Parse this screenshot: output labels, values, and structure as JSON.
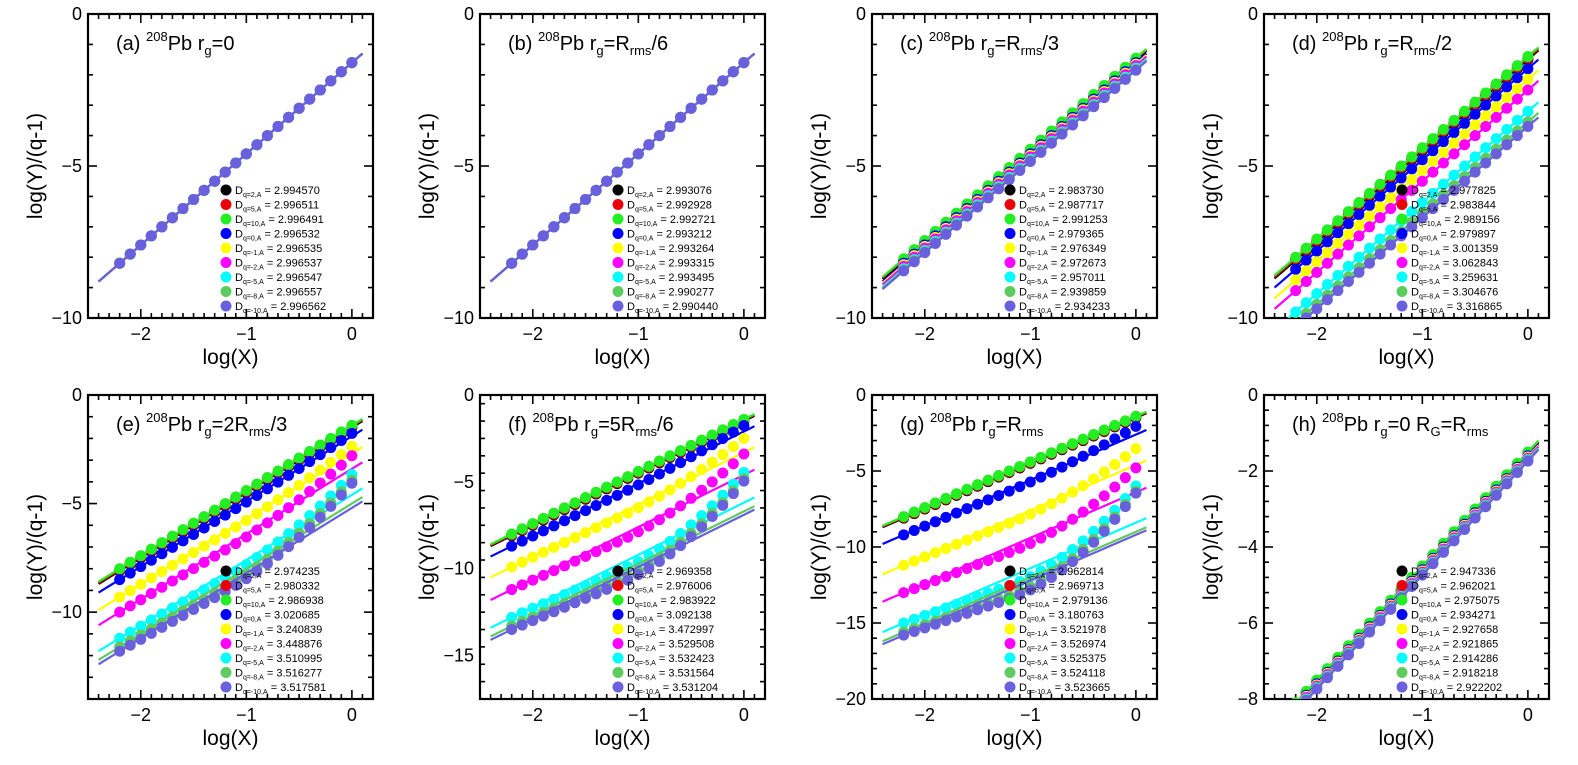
{
  "figure": {
    "xlabel": "log(X)",
    "ylabel": "log(Y)/(q-1)",
    "series_colors": {
      "q=2": "#000000",
      "q=5": "#e8000b",
      "q=10": "#22ee22",
      "q=0": "#0000ff",
      "q=-1": "#ffff00",
      "q=-2": "#ff00ff",
      "q=-5": "#00ffff",
      "q=-8": "#5ecb5e",
      "q=-10": "#6a5fdc"
    }
  },
  "chart_data": [
    {
      "type": "scatter+line",
      "title": {
        "label": "(a)",
        "mass": "208",
        "element": "Pb",
        "condition": "r",
        "condition_sub": "g",
        "condition_rest": "=0",
        "extra": "",
        "extra_sub": "",
        "extra_rest": ""
      },
      "xlabel": "log(X)",
      "ylabel": "log(Y)/(q-1)",
      "xlim": [
        -2.5,
        0.2
      ],
      "ylim": [
        -10,
        0
      ],
      "xticks": [
        "−2",
        "−1",
        "0"
      ],
      "xtick_values": [
        -2,
        -1,
        0
      ],
      "yticks": [
        "−10",
        "−5",
        "0"
      ],
      "ytick_values": [
        -10,
        -5,
        0
      ],
      "legend_position": "bottom-right",
      "series": [
        {
          "q": "2",
          "sub": "q=2,A",
          "dim": "2.994570",
          "color": "#000000",
          "offset": 0,
          "curve": 0
        },
        {
          "q": "5",
          "sub": "q=5,A",
          "dim": "2.996511",
          "color": "#e8000b",
          "offset": 0,
          "curve": 0
        },
        {
          "q": "10",
          "sub": "q=10,A",
          "dim": "2.996491",
          "color": "#22ee22",
          "offset": 0,
          "curve": 0
        },
        {
          "q": "0",
          "sub": "q=0,A",
          "dim": "2.996532",
          "color": "#0000ff",
          "offset": 0,
          "curve": 0
        },
        {
          "q": "-1",
          "sub": "q=-1,A",
          "dim": "2.996535",
          "color": "#ffff00",
          "offset": 0,
          "curve": 0
        },
        {
          "q": "-2",
          "sub": "q=-2,A",
          "dim": "2.996537",
          "color": "#ff00ff",
          "offset": 0,
          "curve": 0
        },
        {
          "q": "-5",
          "sub": "q=-5,A",
          "dim": "2.996547",
          "color": "#00ffff",
          "offset": 0,
          "curve": 0
        },
        {
          "q": "-8",
          "sub": "q=-8,A",
          "dim": "2.996557",
          "color": "#5ecb5e",
          "offset": 0,
          "curve": 0
        },
        {
          "q": "-10",
          "sub": "q=-10,A",
          "dim": "2.996562",
          "color": "#6a5fdc",
          "offset": 0,
          "curve": 0
        }
      ]
    },
    {
      "type": "scatter+line",
      "title": {
        "label": "(b)",
        "mass": "208",
        "element": "Pb",
        "condition": "r",
        "condition_sub": "g",
        "condition_rest": "=R",
        "extra": "",
        "extra_sub": "rms",
        "extra_rest": "/6"
      },
      "xlabel": "log(X)",
      "ylabel": "log(Y)/(q-1)",
      "xlim": [
        -2.5,
        0.2
      ],
      "ylim": [
        -10,
        0
      ],
      "xticks": [
        "−2",
        "−1",
        "0"
      ],
      "xtick_values": [
        -2,
        -1,
        0
      ],
      "yticks": [
        "−10",
        "−5",
        "0"
      ],
      "ytick_values": [
        -10,
        -5,
        0
      ],
      "legend_position": "bottom-right",
      "series": [
        {
          "q": "2",
          "sub": "q=2,A",
          "dim": "2.993076",
          "color": "#000000",
          "offset": 0,
          "curve": 0
        },
        {
          "q": "5",
          "sub": "q=5,A",
          "dim": "2.992928",
          "color": "#e8000b",
          "offset": 0,
          "curve": 0
        },
        {
          "q": "10",
          "sub": "q=10,A",
          "dim": "2.992721",
          "color": "#22ee22",
          "offset": 0,
          "curve": 0
        },
        {
          "q": "0",
          "sub": "q=0,A",
          "dim": "2.993212",
          "color": "#0000ff",
          "offset": 0,
          "curve": 0
        },
        {
          "q": "-1",
          "sub": "q=-1,A",
          "dim": "2.993264",
          "color": "#ffff00",
          "offset": 0,
          "curve": 0
        },
        {
          "q": "-2",
          "sub": "q=-2,A",
          "dim": "2.993315",
          "color": "#ff00ff",
          "offset": 0,
          "curve": 0
        },
        {
          "q": "-5",
          "sub": "q=-5,A",
          "dim": "2.993495",
          "color": "#00ffff",
          "offset": 0,
          "curve": 0
        },
        {
          "q": "-8",
          "sub": "q=-8,A",
          "dim": "2.990277",
          "color": "#5ecb5e",
          "offset": 0,
          "curve": 0
        },
        {
          "q": "-10",
          "sub": "q=-10,A",
          "dim": "2.990440",
          "color": "#6a5fdc",
          "offset": 0,
          "curve": 0
        }
      ]
    },
    {
      "type": "scatter+line",
      "title": {
        "label": "(c)",
        "mass": "208",
        "element": "Pb",
        "condition": "r",
        "condition_sub": "g",
        "condition_rest": "=R",
        "extra": "",
        "extra_sub": "rms",
        "extra_rest": "/3"
      },
      "xlabel": "log(X)",
      "ylabel": "log(Y)/(q-1)",
      "xlim": [
        -2.5,
        0.2
      ],
      "ylim": [
        -10,
        0
      ],
      "xticks": [
        "−2",
        "−1",
        "0"
      ],
      "xtick_values": [
        -2,
        -1,
        0
      ],
      "yticks": [
        "−10",
        "−5",
        "0"
      ],
      "ytick_values": [
        -10,
        -5,
        0
      ],
      "legend_position": "bottom-right",
      "series": [
        {
          "q": "2",
          "sub": "q=2,A",
          "dim": "2.983730",
          "color": "#000000",
          "offset": 0.08,
          "curve": 0
        },
        {
          "q": "5",
          "sub": "q=5,A",
          "dim": "2.987717",
          "color": "#e8000b",
          "offset": 0.12,
          "curve": 0
        },
        {
          "q": "10",
          "sub": "q=10,A",
          "dim": "2.991253",
          "color": "#22ee22",
          "offset": 0.15,
          "curve": 0
        },
        {
          "q": "0",
          "sub": "q=0,A",
          "dim": "2.979365",
          "color": "#0000ff",
          "offset": 0.0,
          "curve": 0
        },
        {
          "q": "-1",
          "sub": "q=-1,A",
          "dim": "2.976349",
          "color": "#ffff00",
          "offset": -0.05,
          "curve": 0
        },
        {
          "q": "-2",
          "sub": "q=-2,A",
          "dim": "2.972673",
          "color": "#ff00ff",
          "offset": -0.1,
          "curve": 0
        },
        {
          "q": "-5",
          "sub": "q=-5,A",
          "dim": "2.957011",
          "color": "#00ffff",
          "offset": -0.18,
          "curve": 0
        },
        {
          "q": "-8",
          "sub": "q=-8,A",
          "dim": "2.939859",
          "color": "#5ecb5e",
          "offset": -0.22,
          "curve": 0
        },
        {
          "q": "-10",
          "sub": "q=-10,A",
          "dim": "2.934233",
          "color": "#6a5fdc",
          "offset": -0.25,
          "curve": 0
        }
      ]
    },
    {
      "type": "scatter+line",
      "title": {
        "label": "(d)",
        "mass": "208",
        "element": "Pb",
        "condition": "r",
        "condition_sub": "g",
        "condition_rest": "=R",
        "extra": "",
        "extra_sub": "rms",
        "extra_rest": "/2"
      },
      "xlabel": "log(X)",
      "ylabel": "log(Y)/(q-1)",
      "xlim": [
        -2.5,
        0.2
      ],
      "ylim": [
        -10,
        0
      ],
      "xticks": [
        "−2",
        "−1",
        "0"
      ],
      "xtick_values": [
        -2,
        -1,
        0
      ],
      "yticks": [
        "−10",
        "−5",
        "0"
      ],
      "ytick_values": [
        -10,
        -5,
        0
      ],
      "legend_position": "bottom-right",
      "series": [
        {
          "q": "2",
          "sub": "q=2,A",
          "dim": "2.977825",
          "color": "#000000",
          "offset": 0.1,
          "curve": 0
        },
        {
          "q": "5",
          "sub": "q=5,A",
          "dim": "2.983844",
          "color": "#e8000b",
          "offset": 0.15,
          "curve": 0
        },
        {
          "q": "10",
          "sub": "q=10,A",
          "dim": "2.989156",
          "color": "#22ee22",
          "offset": 0.2,
          "curve": 0
        },
        {
          "q": "0",
          "sub": "q=0,A",
          "dim": "2.979897",
          "color": "#0000ff",
          "offset": -0.2,
          "curve": 0
        },
        {
          "q": "-1",
          "sub": "q=-1,A",
          "dim": "3.001359",
          "color": "#ffff00",
          "offset": -0.55,
          "curve": 0
        },
        {
          "q": "-2",
          "sub": "q=-2,A",
          "dim": "3.062843",
          "color": "#ff00ff",
          "offset": -0.9,
          "curve": 0
        },
        {
          "q": "-5",
          "sub": "q=-5,A",
          "dim": "3.259631",
          "color": "#00ffff",
          "offset": -1.6,
          "curve": 0
        },
        {
          "q": "-8",
          "sub": "q=-8,A",
          "dim": "3.304676",
          "color": "#5ecb5e",
          "offset": -1.95,
          "curve": 0
        },
        {
          "q": "-10",
          "sub": "q=-10,A",
          "dim": "3.316865",
          "color": "#6a5fdc",
          "offset": -2.1,
          "curve": 0
        }
      ]
    },
    {
      "type": "scatter+line",
      "title": {
        "label": "(e)",
        "mass": "208",
        "element": "Pb",
        "condition": "r",
        "condition_sub": "g",
        "condition_rest": "=2R",
        "extra": "",
        "extra_sub": "rms",
        "extra_rest": "/3"
      },
      "xlabel": "log(X)",
      "ylabel": "log(Y)/(q-1)",
      "xlim": [
        -2.5,
        0.2
      ],
      "ylim": [
        -14,
        0
      ],
      "xticks": [
        "−2",
        "−1",
        "0"
      ],
      "xtick_values": [
        -2,
        -1,
        0
      ],
      "yticks": [
        "−10",
        "−5",
        "0"
      ],
      "ytick_values": [
        -10,
        -5,
        0
      ],
      "legend_position": "bottom-right",
      "series": [
        {
          "q": "2",
          "sub": "q=2,A",
          "dim": "2.974235",
          "color": "#000000",
          "offset": 0.1,
          "curve": 0
        },
        {
          "q": "5",
          "sub": "q=5,A",
          "dim": "2.980332",
          "color": "#e8000b",
          "offset": 0.15,
          "curve": 0
        },
        {
          "q": "10",
          "sub": "q=10,A",
          "dim": "2.986938",
          "color": "#22ee22",
          "offset": 0.2,
          "curve": 0
        },
        {
          "q": "0",
          "sub": "q=0,A",
          "dim": "3.020685",
          "color": "#0000ff",
          "offset": -0.3,
          "curve": 0.2
        },
        {
          "q": "-1",
          "sub": "q=-1,A",
          "dim": "3.240839",
          "color": "#ffff00",
          "offset": -1.1,
          "curve": 0.5
        },
        {
          "q": "-2",
          "sub": "q=-2,A",
          "dim": "3.448876",
          "color": "#ff00ff",
          "offset": -1.8,
          "curve": 0.9
        },
        {
          "q": "-5",
          "sub": "q=-5,A",
          "dim": "3.510995",
          "color": "#00ffff",
          "offset": -3.0,
          "curve": 1.4
        },
        {
          "q": "-8",
          "sub": "q=-8,A",
          "dim": "3.516277",
          "color": "#5ecb5e",
          "offset": -3.4,
          "curve": 1.6
        },
        {
          "q": "-10",
          "sub": "q=-10,A",
          "dim": "3.517581",
          "color": "#6a5fdc",
          "offset": -3.6,
          "curve": 1.7
        }
      ]
    },
    {
      "type": "scatter+line",
      "title": {
        "label": "(f)",
        "mass": "208",
        "element": "Pb",
        "condition": "r",
        "condition_sub": "g",
        "condition_rest": "=5R",
        "extra": "",
        "extra_sub": "rms",
        "extra_rest": "/6"
      },
      "xlabel": "log(X)",
      "ylabel": "log(Y)/(q-1)",
      "xlim": [
        -2.5,
        0.2
      ],
      "ylim": [
        -17.5,
        0
      ],
      "xticks": [
        "−2",
        "−1",
        "0"
      ],
      "xtick_values": [
        -2,
        -1,
        0
      ],
      "yticks": [
        "−15",
        "−10",
        "−5",
        "0"
      ],
      "ytick_values": [
        -15,
        -10,
        -5,
        0
      ],
      "legend_position": "bottom-right",
      "series": [
        {
          "q": "2",
          "sub": "q=2,A",
          "dim": "2.969358",
          "color": "#000000",
          "offset": 0.1,
          "curve": 0
        },
        {
          "q": "5",
          "sub": "q=5,A",
          "dim": "2.976006",
          "color": "#e8000b",
          "offset": 0.15,
          "curve": 0
        },
        {
          "q": "10",
          "sub": "q=10,A",
          "dim": "2.983922",
          "color": "#22ee22",
          "offset": 0.2,
          "curve": 0
        },
        {
          "q": "0",
          "sub": "q=0,A",
          "dim": "3.092138",
          "color": "#0000ff",
          "offset": -0.5,
          "curve": 0.5
        },
        {
          "q": "-1",
          "sub": "q=-1,A",
          "dim": "3.472997",
          "color": "#ffff00",
          "offset": -1.7,
          "curve": 1.2
        },
        {
          "q": "-2",
          "sub": "q=-2,A",
          "dim": "3.529508",
          "color": "#ff00ff",
          "offset": -3.0,
          "curve": 1.8
        },
        {
          "q": "-5",
          "sub": "q=-5,A",
          "dim": "3.532423",
          "color": "#00ffff",
          "offset": -4.6,
          "curve": 2.6
        },
        {
          "q": "-8",
          "sub": "q=-8,A",
          "dim": "3.531564",
          "color": "#5ecb5e",
          "offset": -5.1,
          "curve": 2.8
        },
        {
          "q": "-10",
          "sub": "q=-10,A",
          "dim": "3.531204",
          "color": "#6a5fdc",
          "offset": -5.3,
          "curve": 2.9
        }
      ]
    },
    {
      "type": "scatter+line",
      "title": {
        "label": "(g)",
        "mass": "208",
        "element": "Pb",
        "condition": "r",
        "condition_sub": "g",
        "condition_rest": "=R",
        "extra": "",
        "extra_sub": "rms",
        "extra_rest": ""
      },
      "xlabel": "log(X)",
      "ylabel": "log(Y)/(q-1)",
      "xlim": [
        -2.5,
        0.2
      ],
      "ylim": [
        -20,
        0
      ],
      "xticks": [
        "−2",
        "−1",
        "0"
      ],
      "xtick_values": [
        -2,
        -1,
        0
      ],
      "yticks": [
        "−20",
        "−15",
        "−10",
        "−5",
        "0"
      ],
      "ytick_values": [
        -20,
        -15,
        -10,
        -5,
        0
      ],
      "legend_position": "bottom-right",
      "series": [
        {
          "q": "2",
          "sub": "q=2,A",
          "dim": "2.962814",
          "color": "#000000",
          "offset": 0.1,
          "curve": 0
        },
        {
          "q": "5",
          "sub": "q=5,A",
          "dim": "2.969713",
          "color": "#e8000b",
          "offset": 0.15,
          "curve": 0
        },
        {
          "q": "10",
          "sub": "q=10,A",
          "dim": "2.979136",
          "color": "#22ee22",
          "offset": 0.2,
          "curve": 0
        },
        {
          "q": "0",
          "sub": "q=0,A",
          "dim": "3.180763",
          "color": "#0000ff",
          "offset": -1.0,
          "curve": 0.8
        },
        {
          "q": "-1",
          "sub": "q=-1,A",
          "dim": "3.521978",
          "color": "#yellow",
          "offset": -3.0,
          "curve": 1.6
        },
        {
          "q": "-2",
          "sub": "q=-2,A",
          "dim": "3.526974",
          "color": "#ff00ff",
          "offset": -4.8,
          "curve": 2.4
        },
        {
          "q": "-5",
          "sub": "q=-5,A",
          "dim": "3.525375",
          "color": "#00ffff",
          "offset": -6.8,
          "curve": 3.6
        },
        {
          "q": "-8",
          "sub": "q=-8,A",
          "dim": "3.524118",
          "color": "#5ecb5e",
          "offset": -7.4,
          "curve": 4.0
        },
        {
          "q": "-10",
          "sub": "q=-10,A",
          "dim": "3.523665",
          "color": "#6a5fdc",
          "offset": -7.6,
          "curve": 4.1
        }
      ]
    },
    {
      "type": "scatter+line",
      "title": {
        "label": "(h)",
        "mass": "208",
        "element": "Pb",
        "condition": "r",
        "condition_sub": "g",
        "condition_rest": "=0",
        "extra": "R",
        "extra_sub": "G",
        "extra_rest": "=R",
        "extra_sub2": "rms"
      },
      "xlabel": "log(X)",
      "ylabel": "log(Y)/(q-1)",
      "xlim": [
        -2.5,
        0.2
      ],
      "ylim": [
        -8,
        0
      ],
      "xticks": [
        "−2",
        "−1",
        "0"
      ],
      "xtick_values": [
        -2,
        -1,
        0
      ],
      "yticks": [
        "−8",
        "−6",
        "−4",
        "−2",
        "0"
      ],
      "ytick_values": [
        -8,
        -6,
        -4,
        -2,
        0
      ],
      "legend_position": "bottom-right",
      "series": [
        {
          "q": "2",
          "sub": "q=2,A",
          "dim": "2.947336",
          "color": "#000000",
          "offset": 0.05,
          "curve": 0
        },
        {
          "q": "5",
          "sub": "q=5,A",
          "dim": "2.962021",
          "color": "#e8000b",
          "offset": 0.08,
          "curve": 0
        },
        {
          "q": "10",
          "sub": "q=10,A",
          "dim": "2.975075",
          "color": "#22ee22",
          "offset": 0.1,
          "curve": 0
        },
        {
          "q": "0",
          "sub": "q=0,A",
          "dim": "2.934271",
          "color": "#0000ff",
          "offset": 0.0,
          "curve": 0
        },
        {
          "q": "-1",
          "sub": "q=-1,A",
          "dim": "2.927658",
          "color": "#ffff00",
          "offset": -0.03,
          "curve": 0
        },
        {
          "q": "-2",
          "sub": "q=-2,A",
          "dim": "2.921865",
          "color": "#ff00ff",
          "offset": -0.06,
          "curve": 0
        },
        {
          "q": "-5",
          "sub": "q=-5,A",
          "dim": "2.914286",
          "color": "#00ffff",
          "offset": -0.1,
          "curve": 0
        },
        {
          "q": "-8",
          "sub": "q=-8,A",
          "dim": "2.918218",
          "color": "#5ecb5e",
          "offset": -0.12,
          "curve": 0
        },
        {
          "q": "-10",
          "sub": "q=-10,A",
          "dim": "2.922202",
          "color": "#6a5fdc",
          "offset": -0.14,
          "curve": 0
        }
      ]
    }
  ]
}
